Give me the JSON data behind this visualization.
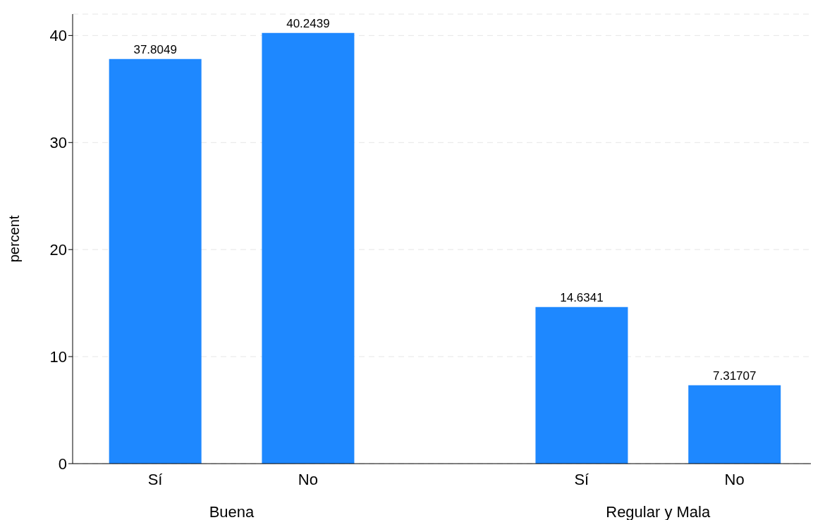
{
  "chart_data": {
    "type": "bar",
    "ylabel": "percent",
    "categories": [
      "Sí",
      "No",
      "Sí",
      "No"
    ],
    "values": [
      37.8049,
      40.2439,
      14.6341,
      7.31707
    ],
    "color": "#1e88ff",
    "annotations": [
      "Buena",
      "Regular y Mala"
    ],
    "ylim": [
      0,
      42
    ],
    "yticks": [
      0,
      10,
      20,
      30,
      40
    ],
    "grid": "y",
    "data_labels": true
  }
}
